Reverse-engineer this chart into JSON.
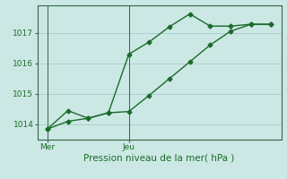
{
  "title": "",
  "xlabel": "Pression niveau de la mer( hPa )",
  "ylabel": "",
  "bg_color": "#cce8e4",
  "grid_color": "#aacfcc",
  "line_color": "#1a6b2a",
  "spine_color": "#336644",
  "ylim": [
    1013.5,
    1017.9
  ],
  "yticks": [
    1014,
    1015,
    1016,
    1017
  ],
  "line1_x": [
    0,
    1,
    2,
    3,
    4,
    5,
    6,
    7,
    8,
    9,
    10,
    11
  ],
  "line1_y": [
    1013.85,
    1014.45,
    1014.2,
    1014.38,
    1016.3,
    1016.7,
    1017.2,
    1017.62,
    1017.22,
    1017.22,
    1017.28,
    1017.28
  ],
  "line2_x": [
    0,
    1,
    2,
    3,
    4,
    5,
    6,
    7,
    8,
    9,
    10,
    11
  ],
  "line2_y": [
    1013.85,
    1014.1,
    1014.2,
    1014.38,
    1014.42,
    1014.95,
    1015.5,
    1016.05,
    1016.6,
    1017.05,
    1017.28,
    1017.28
  ],
  "marker_size": 2.5,
  "linewidth": 1.0,
  "xlabel_fontsize": 7.5,
  "tick_fontsize": 6.5,
  "xtick_labels_pos": [
    0,
    4
  ],
  "xtick_labels": [
    "Mer",
    "Jeu"
  ],
  "vline_positions": [
    0,
    4
  ]
}
